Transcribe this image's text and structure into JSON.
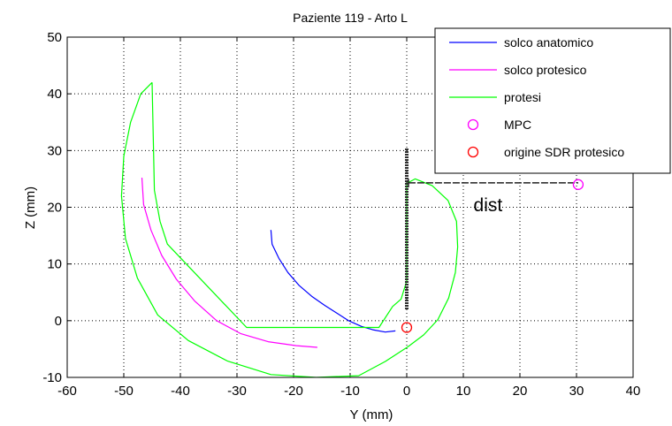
{
  "chart_data": {
    "type": "line",
    "title": "Paziente 119 - Arto L",
    "xlabel": "Y (mm)",
    "ylabel": "Z  (mm)",
    "xlim": [
      -60,
      40
    ],
    "ylim": [
      -10,
      50
    ],
    "xticks": [
      -60,
      -50,
      -40,
      -30,
      -20,
      -10,
      0,
      10,
      20,
      30,
      40
    ],
    "yticks": [
      -10,
      0,
      10,
      20,
      30,
      40,
      50
    ],
    "xtick_labels": [
      "-60",
      "-50",
      "-40",
      "-30",
      "-20",
      "-10",
      "0",
      "10",
      "20",
      "30",
      "40"
    ],
    "ytick_labels": [
      "-10",
      "0",
      "10",
      "20",
      "30",
      "40",
      "50"
    ],
    "grid": true,
    "grid_style": "dotted",
    "legend_position": "top-right",
    "series": [
      {
        "name": "solco anatomico",
        "color": "#0000ff",
        "style": "line",
        "points": [
          [
            -24,
            16
          ],
          [
            -23.8,
            13.5
          ],
          [
            -22.6,
            11
          ],
          [
            -21,
            8.5
          ],
          [
            -19,
            6.2
          ],
          [
            -16.8,
            4.3
          ],
          [
            -14.5,
            2.7
          ],
          [
            -12.3,
            1.3
          ],
          [
            -10.3,
            0
          ],
          [
            -8,
            -1
          ],
          [
            -6,
            -1.6
          ],
          [
            -3.8,
            -2
          ],
          [
            -2,
            -1.8
          ]
        ]
      },
      {
        "name": "solco protesico",
        "color": "#ff00ff",
        "style": "line",
        "points": [
          [
            -46.8,
            25.2
          ],
          [
            -46.5,
            20.5
          ],
          [
            -45.2,
            16
          ],
          [
            -43.3,
            11.5
          ],
          [
            -40.7,
            7.3
          ],
          [
            -37.5,
            3.5
          ],
          [
            -33.6,
            0
          ],
          [
            -29.3,
            -2.3
          ],
          [
            -24.5,
            -3.7
          ],
          [
            -19.5,
            -4.4
          ],
          [
            -15.8,
            -4.7
          ]
        ]
      },
      {
        "name": "protesi",
        "color": "#00ff00",
        "style": "line",
        "points": [
          [
            -45,
            42
          ],
          [
            -47,
            40
          ],
          [
            -48.8,
            35
          ],
          [
            -50,
            29
          ],
          [
            -50.4,
            22
          ],
          [
            -49.7,
            14.5
          ],
          [
            -47.6,
            7.5
          ],
          [
            -44,
            1
          ],
          [
            -38.6,
            -3.5
          ],
          [
            -31.7,
            -7.1
          ],
          [
            -24,
            -9.5
          ],
          [
            -16,
            -10
          ],
          [
            -8.5,
            -9.7
          ],
          [
            -3.8,
            -7.2
          ],
          [
            0.2,
            -4.6
          ],
          [
            3,
            -2.5
          ],
          [
            5.5,
            0.2
          ],
          [
            7.4,
            4
          ],
          [
            8.6,
            8.5
          ],
          [
            9,
            13
          ],
          [
            8.8,
            17.5
          ],
          [
            7.3,
            21.2
          ],
          [
            4.5,
            23.8
          ],
          [
            1.5,
            25
          ],
          [
            0,
            24.2
          ],
          [
            0,
            7
          ],
          [
            -1,
            3.8
          ],
          [
            -2.5,
            2.5
          ],
          [
            -4.9,
            -1.2
          ],
          [
            -28.3,
            -1.2
          ],
          [
            -42.3,
            13.5
          ],
          [
            -43.6,
            17.5
          ],
          [
            -44.6,
            23
          ],
          [
            -45,
            42
          ]
        ]
      },
      {
        "name": "MPC",
        "color": "#ff00ff",
        "style": "marker",
        "points": [
          [
            30.3,
            24
          ]
        ]
      },
      {
        "name": "origine SDR protesico",
        "color": "#ff0000",
        "style": "marker",
        "points": [
          [
            0,
            -1.2
          ]
        ]
      }
    ],
    "vertical_segment": {
      "x": 0,
      "y_from": 2,
      "y_to": 30.5,
      "color": "#303030"
    },
    "dist_segment": {
      "x_from": 0.3,
      "x_to": 30.3,
      "y": 24.3,
      "color": "#202020",
      "y_tick_from": 23.5,
      "y_tick_to": 25
    },
    "annotations": [
      {
        "text": "dist",
        "x": 11.8,
        "y": 19.3
      }
    ]
  }
}
